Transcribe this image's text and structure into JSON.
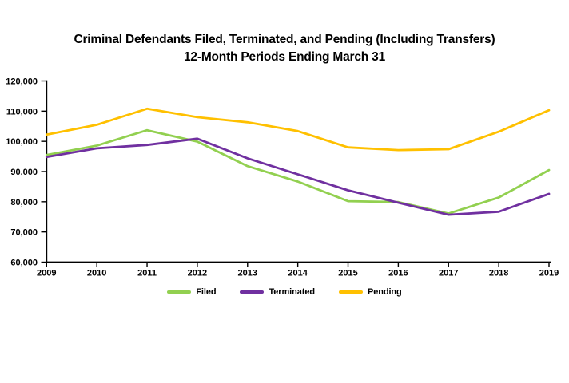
{
  "chart_data": {
    "type": "line",
    "title": "Criminal Defendants Filed, Terminated, and Pending (Including Transfers)",
    "subtitle": "12-Month Periods Ending March 31",
    "categories": [
      "2009",
      "2010",
      "2011",
      "2012",
      "2013",
      "2014",
      "2015",
      "2016",
      "2017",
      "2018",
      "2019"
    ],
    "series": [
      {
        "name": "Filed",
        "color": "#92D050",
        "values": [
          95500,
          98600,
          103700,
          99900,
          91800,
          86700,
          80200,
          79900,
          76100,
          81400,
          90500
        ]
      },
      {
        "name": "Terminated",
        "color": "#7030A0",
        "values": [
          94800,
          97700,
          98800,
          100900,
          94400,
          89100,
          83800,
          79700,
          75700,
          76700,
          82600
        ]
      },
      {
        "name": "Pending",
        "color": "#FFC000",
        "values": [
          102200,
          105500,
          110800,
          108000,
          106300,
          103400,
          98000,
          97100,
          97400,
          103200,
          110300
        ]
      }
    ],
    "xlabel": "",
    "ylabel": "",
    "ylim": [
      60000,
      120000
    ],
    "y_ticks": [
      60000,
      70000,
      80000,
      90000,
      100000,
      110000,
      120000
    ],
    "y_tick_labels": [
      "60,000",
      "70,000",
      "80,000",
      "90,000",
      "100,000",
      "110,000",
      "120,000"
    ],
    "grid": false,
    "legend_position": "bottom",
    "axis_color": "#000000",
    "text_color": "#000000",
    "background_color": "#FFFFFF"
  }
}
